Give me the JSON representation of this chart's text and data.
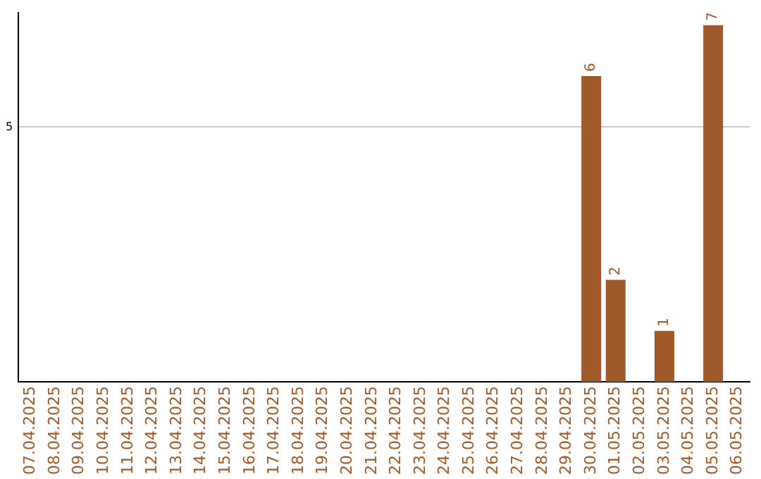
{
  "chart_data": {
    "type": "bar",
    "categories": [
      "07.04.2025",
      "08.04.2025",
      "09.04.2025",
      "10.04.2025",
      "11.04.2025",
      "12.04.2025",
      "13.04.2025",
      "14.04.2025",
      "15.04.2025",
      "16.04.2025",
      "17.04.2025",
      "18.04.2025",
      "19.04.2025",
      "20.04.2025",
      "21.04.2025",
      "22.04.2025",
      "23.04.2025",
      "24.04.2025",
      "25.04.2025",
      "26.04.2025",
      "27.04.2025",
      "28.04.2025",
      "29.04.2025",
      "30.04.2025",
      "01.05.2025",
      "02.05.2025",
      "03.05.2025",
      "04.05.2025",
      "05.05.2025",
      "06.05.2025"
    ],
    "values": [
      null,
      null,
      null,
      null,
      null,
      null,
      null,
      null,
      null,
      null,
      null,
      null,
      null,
      null,
      null,
      null,
      null,
      null,
      null,
      null,
      null,
      null,
      null,
      6,
      2,
      null,
      1,
      null,
      7,
      null
    ],
    "data_labels": true,
    "color": "#a0592a",
    "ylim": [
      0,
      7.25
    ],
    "yticks": [
      5
    ],
    "grid": "y",
    "legend": false
  }
}
